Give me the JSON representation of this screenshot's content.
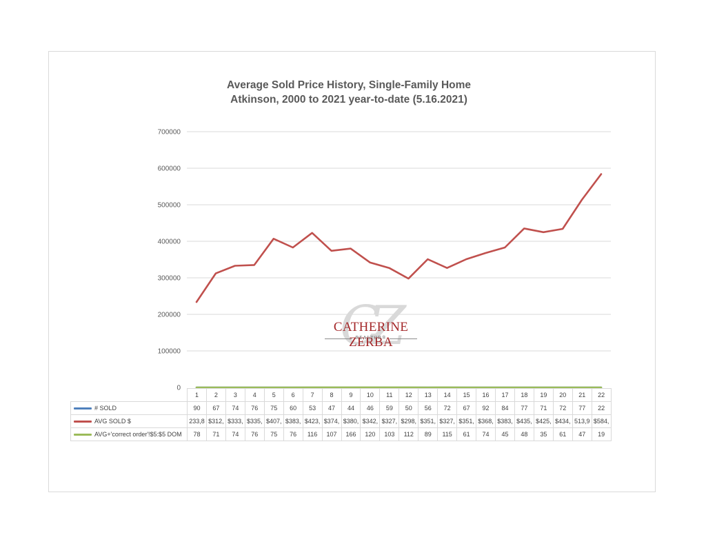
{
  "chart_data": {
    "type": "line",
    "title": "Average Sold Price History, Single-Family Home",
    "subtitle": "Atkinson, 2000 to 2021 year-to-date (5.16.2021)",
    "categories": [
      "1",
      "2",
      "3",
      "4",
      "5",
      "6",
      "7",
      "8",
      "9",
      "10",
      "11",
      "12",
      "13",
      "14",
      "15",
      "16",
      "17",
      "18",
      "19",
      "20",
      "21",
      "22"
    ],
    "ylim": [
      0,
      700000
    ],
    "yticks": [
      "0",
      "100000",
      "200000",
      "300000",
      "400000",
      "500000",
      "600000",
      "700000"
    ],
    "grid": true,
    "legend": "data-table",
    "series": [
      {
        "name": "# SOLD",
        "color": "#4f81bd",
        "values": [
          90,
          67,
          74,
          76,
          75,
          60,
          53,
          47,
          44,
          46,
          59,
          50,
          56,
          72,
          67,
          92,
          84,
          77,
          71,
          72,
          77,
          22
        ],
        "labels": [
          "90",
          "67",
          "74",
          "76",
          "75",
          "60",
          "53",
          "47",
          "44",
          "46",
          "59",
          "50",
          "56",
          "72",
          "67",
          "92",
          "84",
          "77",
          "71",
          "72",
          "77",
          "22"
        ]
      },
      {
        "name": "AVG SOLD $",
        "color": "#c0504d",
        "values": [
          233800,
          312000,
          333000,
          335000,
          407000,
          383000,
          423000,
          374000,
          380000,
          342000,
          327000,
          298000,
          351000,
          327000,
          351000,
          368000,
          383000,
          435000,
          425000,
          434000,
          513900,
          584000
        ],
        "labels": [
          "233,8",
          "$312,",
          "$333,",
          "$335,",
          "$407,",
          "$383,",
          "$423,",
          "$374,",
          "$380,",
          "$342,",
          "$327,",
          "$298,",
          "$351,",
          "$327,",
          "$351,",
          "$368,",
          "$383,",
          "$435,",
          "$425,",
          "$434,",
          "513,9",
          "$584,"
        ]
      },
      {
        "name": "AVG+'correct order'!$5:$5 DOM",
        "color": "#9bbb59",
        "values": [
          78,
          71,
          74,
          76,
          75,
          76,
          116,
          107,
          166,
          120,
          103,
          112,
          89,
          115,
          61,
          74,
          45,
          48,
          35,
          61,
          47,
          19
        ],
        "labels": [
          "78",
          "71",
          "74",
          "76",
          "75",
          "76",
          "116",
          "107",
          "166",
          "120",
          "103",
          "112",
          "89",
          "115",
          "61",
          "74",
          "45",
          "48",
          "35",
          "61",
          "47",
          "19"
        ]
      }
    ]
  },
  "logo": {
    "name": "CATHERINE ZERBA",
    "sub": "REALTOR®",
    "monogram": "CZ"
  },
  "colors": {
    "grid": "#d9d9d9",
    "axis_text": "#595959",
    "brand": "#a4282a"
  }
}
